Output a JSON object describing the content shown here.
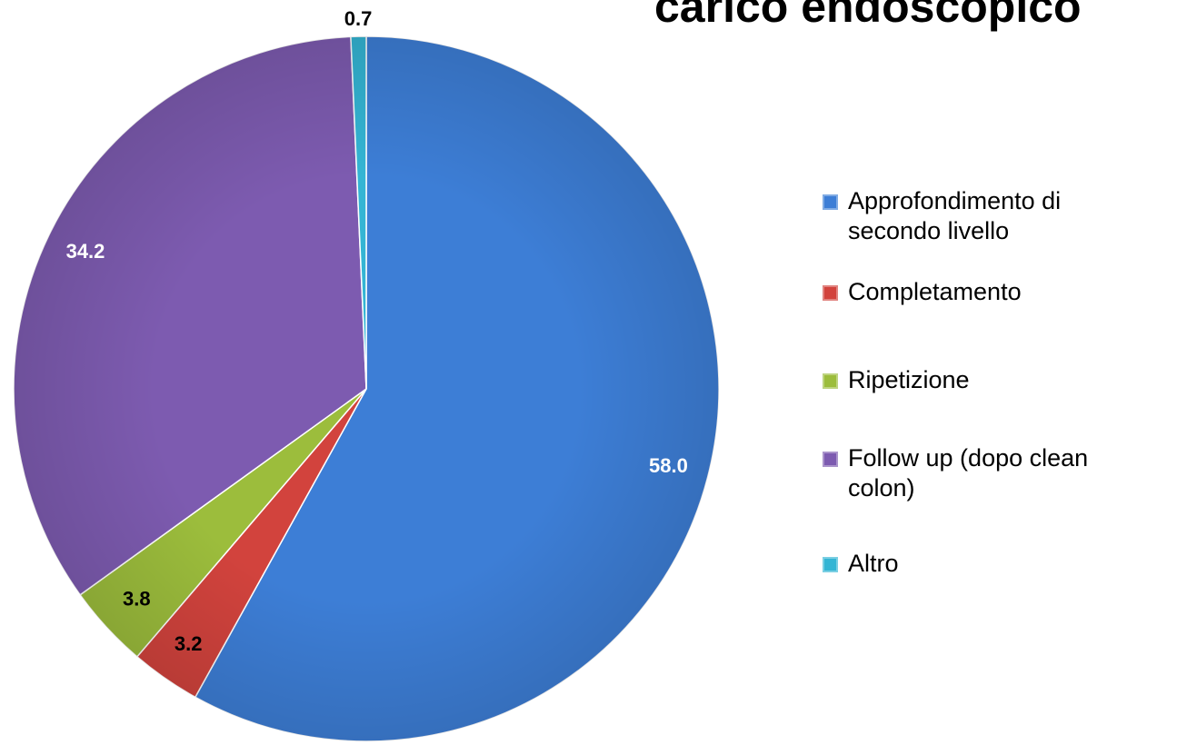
{
  "chart_data": {
    "type": "pie",
    "title": "carico endoscopico",
    "categories": [
      "Approfondimento di secondo livello",
      "Completamento",
      "Ripetizione",
      "Follow up (dopo clean colon)",
      "Altro"
    ],
    "values": [
      58.0,
      3.2,
      3.8,
      34.2,
      0.7
    ],
    "value_labels": [
      "58.0",
      "3.2",
      "3.8",
      "34.2",
      "0.7"
    ],
    "colors": [
      "#3d7ed6",
      "#d2433d",
      "#9cbd3c",
      "#7d5bb0",
      "#34b5d4"
    ],
    "label_colors": [
      "#ffffff",
      "#000000",
      "#000000",
      "#ffffff",
      "#000000"
    ],
    "legend": "right"
  }
}
